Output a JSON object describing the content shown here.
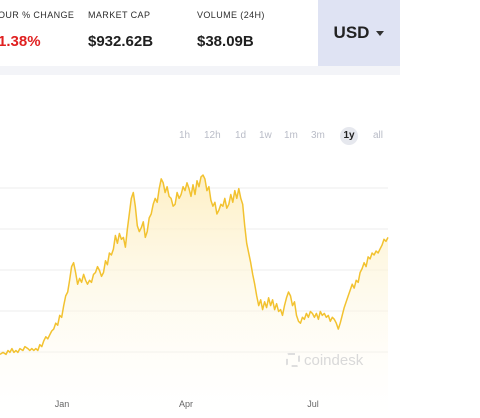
{
  "stats": [
    {
      "label": "OUR % CHANGE",
      "value": "1.38%",
      "negative": true
    },
    {
      "label": "MARKET CAP",
      "value": "$932.62B",
      "negative": false
    },
    {
      "label": "VOLUME (24H)",
      "value": "$38.09B",
      "negative": false
    }
  ],
  "currency": {
    "selected": "USD",
    "icon": "caret-down-icon"
  },
  "range_tabs": [
    {
      "label": "1h",
      "active": false
    },
    {
      "label": "12h",
      "active": false
    },
    {
      "label": "1d",
      "active": false
    },
    {
      "label": "1w",
      "active": false
    },
    {
      "label": "1m",
      "active": false
    },
    {
      "label": "3m",
      "active": false
    },
    {
      "label": "1y",
      "active": true
    },
    {
      "label": "all",
      "active": false
    }
  ],
  "watermark": {
    "text": "coindesk",
    "icon": "coindesk-logo-icon"
  },
  "colors": {
    "line": "#f2c230",
    "fill": "#fdf3d3",
    "negative": "#e02020",
    "currency_bg": "#dfe3f3",
    "grid": "#ececec"
  },
  "chart_data": {
    "type": "area",
    "x_ticks": [
      "Jan",
      "Apr",
      "Jul"
    ],
    "series": [
      {
        "points": [
          [
            0,
            0.08
          ],
          [
            3,
            0.09
          ],
          [
            6,
            0.08
          ],
          [
            8,
            0.1
          ],
          [
            10,
            0.09
          ],
          [
            12,
            0.11
          ],
          [
            14,
            0.09
          ],
          [
            16,
            0.1
          ],
          [
            18,
            0.09
          ],
          [
            20,
            0.11
          ],
          [
            23,
            0.1
          ],
          [
            25,
            0.12
          ],
          [
            28,
            0.11
          ],
          [
            30,
            0.1
          ],
          [
            32,
            0.11
          ],
          [
            34,
            0.1
          ],
          [
            36,
            0.11
          ],
          [
            38,
            0.1
          ],
          [
            40,
            0.13
          ],
          [
            42,
            0.12
          ],
          [
            44,
            0.15
          ],
          [
            46,
            0.17
          ],
          [
            48,
            0.16
          ],
          [
            50,
            0.18
          ],
          [
            52,
            0.2
          ],
          [
            54,
            0.21
          ],
          [
            56,
            0.24
          ],
          [
            58,
            0.23
          ],
          [
            60,
            0.28
          ],
          [
            62,
            0.27
          ],
          [
            64,
            0.33
          ],
          [
            66,
            0.38
          ],
          [
            68,
            0.4
          ],
          [
            70,
            0.46
          ],
          [
            72,
            0.53
          ],
          [
            74,
            0.55
          ],
          [
            76,
            0.5
          ],
          [
            78,
            0.44
          ],
          [
            80,
            0.47
          ],
          [
            82,
            0.45
          ],
          [
            84,
            0.49
          ],
          [
            86,
            0.46
          ],
          [
            88,
            0.44
          ],
          [
            90,
            0.46
          ],
          [
            92,
            0.45
          ],
          [
            94,
            0.49
          ],
          [
            96,
            0.5
          ],
          [
            98,
            0.53
          ],
          [
            100,
            0.51
          ],
          [
            102,
            0.48
          ],
          [
            104,
            0.5
          ],
          [
            106,
            0.56
          ],
          [
            108,
            0.54
          ],
          [
            110,
            0.6
          ],
          [
            112,
            0.59
          ],
          [
            114,
            0.62
          ],
          [
            116,
            0.69
          ],
          [
            118,
            0.65
          ],
          [
            120,
            0.7
          ],
          [
            122,
            0.67
          ],
          [
            124,
            0.68
          ],
          [
            126,
            0.63
          ],
          [
            128,
            0.72
          ],
          [
            130,
            0.8
          ],
          [
            132,
            0.88
          ],
          [
            134,
            0.91
          ],
          [
            136,
            0.84
          ],
          [
            138,
            0.74
          ],
          [
            140,
            0.71
          ],
          [
            142,
            0.73
          ],
          [
            144,
            0.76
          ],
          [
            146,
            0.68
          ],
          [
            148,
            0.71
          ],
          [
            150,
            0.78
          ],
          [
            152,
            0.8
          ],
          [
            154,
            0.85
          ],
          [
            156,
            0.88
          ],
          [
            158,
            0.86
          ],
          [
            160,
            0.93
          ],
          [
            162,
            0.98
          ],
          [
            164,
            0.96
          ],
          [
            166,
            0.91
          ],
          [
            168,
            0.94
          ],
          [
            170,
            0.89
          ],
          [
            172,
            0.88
          ],
          [
            174,
            0.84
          ],
          [
            176,
            0.85
          ],
          [
            178,
            0.91
          ],
          [
            180,
            0.88
          ],
          [
            182,
            0.9
          ],
          [
            184,
            0.94
          ],
          [
            186,
            0.92
          ],
          [
            188,
            0.96
          ],
          [
            190,
            0.93
          ],
          [
            192,
            0.89
          ],
          [
            194,
            0.95
          ],
          [
            196,
            0.9
          ],
          [
            198,
            0.97
          ],
          [
            200,
            0.94
          ],
          [
            202,
            0.99
          ],
          [
            204,
            1.0
          ],
          [
            206,
            0.98
          ],
          [
            208,
            0.92
          ],
          [
            210,
            0.94
          ],
          [
            212,
            0.87
          ],
          [
            214,
            0.84
          ],
          [
            216,
            0.86
          ],
          [
            218,
            0.8
          ],
          [
            220,
            0.82
          ],
          [
            222,
            0.85
          ],
          [
            224,
            0.84
          ],
          [
            226,
            0.88
          ],
          [
            228,
            0.83
          ],
          [
            230,
            0.85
          ],
          [
            232,
            0.9
          ],
          [
            234,
            0.86
          ],
          [
            236,
            0.92
          ],
          [
            238,
            0.88
          ],
          [
            240,
            0.93
          ],
          [
            242,
            0.88
          ],
          [
            244,
            0.85
          ],
          [
            246,
            0.74
          ],
          [
            248,
            0.65
          ],
          [
            250,
            0.6
          ],
          [
            252,
            0.55
          ],
          [
            254,
            0.49
          ],
          [
            256,
            0.44
          ],
          [
            258,
            0.38
          ],
          [
            260,
            0.33
          ],
          [
            262,
            0.36
          ],
          [
            264,
            0.31
          ],
          [
            266,
            0.35
          ],
          [
            268,
            0.32
          ],
          [
            270,
            0.37
          ],
          [
            272,
            0.33
          ],
          [
            274,
            0.36
          ],
          [
            276,
            0.31
          ],
          [
            278,
            0.34
          ],
          [
            280,
            0.3
          ],
          [
            282,
            0.31
          ],
          [
            284,
            0.28
          ],
          [
            286,
            0.33
          ],
          [
            288,
            0.37
          ],
          [
            290,
            0.4
          ],
          [
            292,
            0.38
          ],
          [
            294,
            0.33
          ],
          [
            296,
            0.35
          ],
          [
            298,
            0.28
          ],
          [
            300,
            0.25
          ],
          [
            302,
            0.24
          ],
          [
            304,
            0.27
          ],
          [
            306,
            0.26
          ],
          [
            308,
            0.29
          ],
          [
            310,
            0.27
          ],
          [
            312,
            0.3
          ],
          [
            314,
            0.29
          ],
          [
            316,
            0.27
          ],
          [
            318,
            0.29
          ],
          [
            320,
            0.26
          ],
          [
            322,
            0.3
          ],
          [
            324,
            0.28
          ],
          [
            326,
            0.29
          ],
          [
            328,
            0.27
          ],
          [
            330,
            0.28
          ],
          [
            332,
            0.25
          ],
          [
            334,
            0.27
          ],
          [
            336,
            0.26
          ],
          [
            338,
            0.24
          ],
          [
            340,
            0.21
          ],
          [
            342,
            0.24
          ],
          [
            344,
            0.28
          ],
          [
            346,
            0.32
          ],
          [
            348,
            0.35
          ],
          [
            350,
            0.38
          ],
          [
            352,
            0.41
          ],
          [
            354,
            0.44
          ],
          [
            356,
            0.42
          ],
          [
            358,
            0.46
          ],
          [
            360,
            0.45
          ],
          [
            362,
            0.5
          ],
          [
            364,
            0.52
          ],
          [
            366,
            0.55
          ],
          [
            368,
            0.53
          ],
          [
            370,
            0.58
          ],
          [
            372,
            0.57
          ],
          [
            374,
            0.6
          ],
          [
            376,
            0.59
          ],
          [
            378,
            0.61
          ],
          [
            380,
            0.6
          ],
          [
            382,
            0.62
          ],
          [
            384,
            0.64
          ],
          [
            386,
            0.67
          ],
          [
            388,
            0.66
          ],
          [
            390,
            0.68
          ]
        ]
      }
    ]
  }
}
